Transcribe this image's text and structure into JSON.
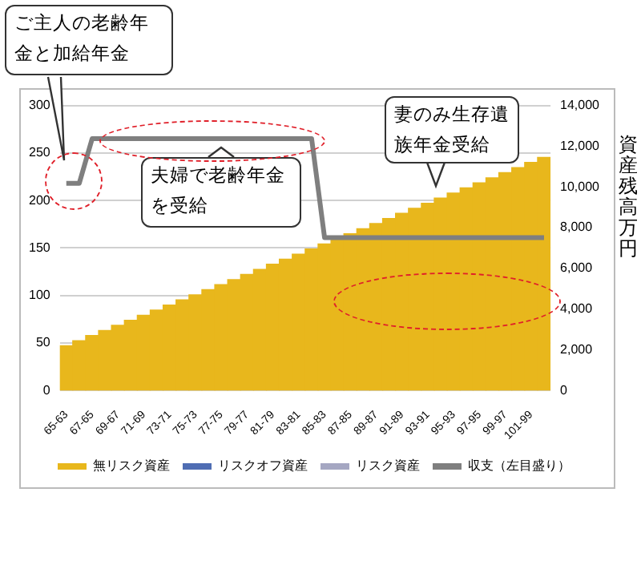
{
  "chart_data": {
    "type": "bar",
    "categories": [
      "65-63",
      null,
      "67-65",
      null,
      "69-67",
      null,
      "71-69",
      null,
      "73-71",
      null,
      "75-73",
      null,
      "77-75",
      null,
      "79-77",
      null,
      "81-79",
      null,
      "83-81",
      null,
      "85-83",
      null,
      "87-85",
      null,
      "89-87",
      null,
      "91-89",
      null,
      "93-91",
      null,
      "95-93",
      null,
      "97-95",
      null,
      "99-97",
      null,
      "101-99",
      null
    ],
    "series": [
      {
        "name": "無リスク資産",
        "axis": "y2",
        "color": "#e8b71c",
        "values": [
          2200,
          2450,
          2700,
          2950,
          3200,
          3450,
          3700,
          3950,
          4200,
          4450,
          4700,
          4950,
          5200,
          5450,
          5700,
          5950,
          6200,
          6450,
          6700,
          6950,
          7200,
          7450,
          7700,
          7950,
          8200,
          8450,
          8700,
          8950,
          9200,
          9450,
          9700,
          9950,
          10200,
          10450,
          10700,
          10950,
          11200,
          11450
        ]
      },
      {
        "name": "リスクオフ資産",
        "axis": "y2",
        "color": "#4f6db3",
        "values": [
          null,
          null,
          null,
          null,
          null,
          null,
          null,
          null,
          null,
          null,
          null,
          null,
          null,
          null,
          null,
          null,
          null,
          null,
          null,
          null,
          null,
          null,
          null,
          null,
          null,
          null,
          null,
          null,
          null,
          null,
          null,
          null,
          null,
          null,
          null,
          null,
          null,
          null
        ]
      },
      {
        "name": "リスク資産",
        "axis": "y2",
        "color": "#a5a7c2",
        "values": [
          null,
          null,
          null,
          null,
          null,
          null,
          null,
          null,
          null,
          null,
          null,
          null,
          null,
          null,
          null,
          null,
          null,
          null,
          null,
          null,
          null,
          null,
          null,
          null,
          null,
          null,
          null,
          null,
          null,
          null,
          null,
          null,
          null,
          null,
          null,
          null,
          null,
          null
        ]
      },
      {
        "name": "収支（左目盛り）",
        "type": "line",
        "axis": "y",
        "color": "#7f7f7f",
        "values": [
          218,
          218,
          265,
          265,
          265,
          265,
          265,
          265,
          265,
          265,
          265,
          265,
          265,
          265,
          265,
          265,
          265,
          265,
          265,
          265,
          161,
          161,
          161,
          161,
          161,
          161,
          161,
          161,
          161,
          161,
          161,
          161,
          161,
          161,
          161,
          161,
          161,
          161
        ]
      }
    ],
    "stacked": true,
    "ylim": [
      0,
      300
    ],
    "yticks": [
      0,
      50,
      100,
      150,
      200,
      250,
      300
    ],
    "y2lim": [
      0,
      14000
    ],
    "y2ticks": [
      0,
      {
        "value": 2000,
        "label": "2,000"
      },
      {
        "value": 4000,
        "label": "4,000"
      },
      {
        "value": 6000,
        "label": "6,000"
      },
      {
        "value": 8000,
        "label": "8,000"
      },
      {
        "value": 10000,
        "label": "10,000"
      },
      {
        "value": 12000,
        "label": "12,000"
      },
      {
        "value": 14000,
        "label": "14,000"
      }
    ],
    "y2label": "資産残高万円",
    "grid": "y",
    "legend": "bottom",
    "marker": "none",
    "line_style": "solid",
    "annotations": [
      "ご主人の老齢年金と加給年金",
      "夫婦で老齢年金を受給",
      "妻のみ生存遺族年金受給"
    ]
  }
}
